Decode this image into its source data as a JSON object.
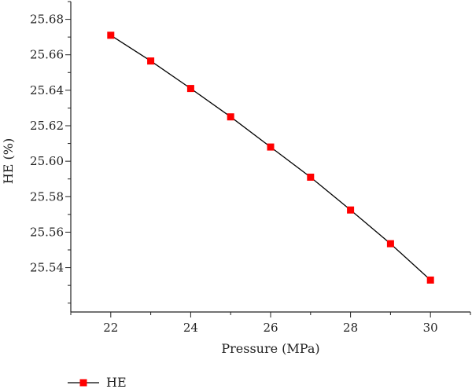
{
  "chart_data": {
    "type": "line",
    "title": "",
    "xlabel": "Pressure (MPa)",
    "ylabel": "HE (%)",
    "xlim": [
      21,
      31
    ],
    "ylim": [
      25.515,
      25.69
    ],
    "xticks": [
      22,
      24,
      26,
      28,
      30
    ],
    "xtick_labels": [
      "22",
      "24",
      "26",
      "28",
      "30"
    ],
    "yticks": [
      25.54,
      25.56,
      25.58,
      25.6,
      25.62,
      25.64,
      25.66,
      25.68
    ],
    "ytick_labels": [
      "25.54",
      "25.56",
      "25.58",
      "25.60",
      "25.62",
      "25.64",
      "25.66",
      "25.68"
    ],
    "grid": false,
    "legend_position": "bottom-left",
    "series": [
      {
        "name": "HE",
        "color": "#ff0000",
        "line_color": "#000000",
        "marker": "square",
        "x": [
          22,
          23,
          24,
          25,
          26,
          27,
          28,
          29,
          30
        ],
        "y": [
          25.671,
          25.6565,
          25.641,
          25.625,
          25.608,
          25.591,
          25.5725,
          25.5535,
          25.533
        ]
      }
    ]
  }
}
